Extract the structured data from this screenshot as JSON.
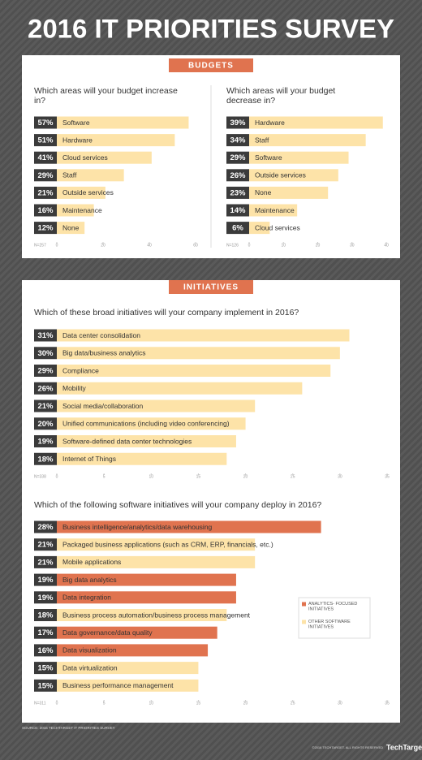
{
  "title": "2016 IT PRIORITIES SURVEY",
  "sections": [
    "BUDGETS",
    "INITIATIVES"
  ],
  "source": "SOURCE: 2016 TECHTARGET IT PRIORITIES SURVEY",
  "copyright": "©2016 TECHTARGET. ALL RIGHTS RESERVED",
  "logo": "TechTarget",
  "chart_data": [
    {
      "type": "bar",
      "orientation": "horizontal",
      "title": "Which areas will your budget increase in?",
      "categories": [
        "Software",
        "Hardware",
        "Cloud services",
        "Staff",
        "Outside services",
        "Maintenance",
        "None"
      ],
      "values": [
        57,
        51,
        41,
        29,
        21,
        16,
        12
      ],
      "value_labels": [
        "57%",
        "51%",
        "41%",
        "29%",
        "21%",
        "16%",
        "12%"
      ],
      "color": "#fde3a8",
      "xlim": [
        0,
        60
      ],
      "xticks": [
        0,
        20,
        40,
        60
      ],
      "note": "N=257"
    },
    {
      "type": "bar",
      "orientation": "horizontal",
      "title": "Which areas will your budget decrease in?",
      "categories": [
        "Hardware",
        "Staff",
        "Software",
        "Outside services",
        "None",
        "Maintenance",
        "Cloud services"
      ],
      "values": [
        39,
        34,
        29,
        26,
        23,
        14,
        6
      ],
      "value_labels": [
        "39%",
        "34%",
        "29%",
        "26%",
        "23%",
        "14%",
        "6%"
      ],
      "color": "#fde3a8",
      "xlim": [
        0,
        40
      ],
      "xticks": [
        0,
        10,
        20,
        30,
        40
      ],
      "note": "N=126"
    },
    {
      "type": "bar",
      "orientation": "horizontal",
      "title": "Which of these broad initiatives will your company implement in 2016?",
      "categories": [
        "Data center consolidation",
        "Big data/business analytics",
        "Compliance",
        "Mobility",
        "Social media/collaboration",
        "Unified communications (including video conferencing)",
        "Software-defined data center technologies",
        "Internet of Things"
      ],
      "values": [
        31,
        30,
        29,
        26,
        21,
        20,
        19,
        18
      ],
      "value_labels": [
        "31%",
        "30%",
        "29%",
        "26%",
        "21%",
        "20%",
        "19%",
        "18%"
      ],
      "color": "#fde3a8",
      "xlim": [
        0,
        35
      ],
      "xticks": [
        0,
        5,
        10,
        15,
        20,
        25,
        30,
        35
      ],
      "note": "N=338"
    },
    {
      "type": "bar",
      "orientation": "horizontal",
      "title": "Which of the following software initiatives will your company deploy in 2016?",
      "categories": [
        "Business intelligence/analytics/data warehousing",
        "Packaged business applications (such as CRM, ERP, financials, etc.)",
        "Mobile applications",
        "Big data analytics",
        "Data integration",
        "Business process automation/business process management",
        "Data governance/data quality",
        "Data visualization",
        "Data virtualization",
        "Business performance management"
      ],
      "series": [
        {
          "name": "ANALYTICS- FOCUSED INITIATIVES",
          "color": "#e0734f",
          "values": [
            28,
            null,
            null,
            19,
            19,
            null,
            17,
            16,
            null,
            null
          ],
          "value_labels": [
            "28%",
            null,
            null,
            "19%",
            "19%",
            null,
            "17%",
            "16%",
            null,
            null
          ]
        },
        {
          "name": "OTHER SOFTWARE INITIATIVES",
          "color": "#fde3a8",
          "values": [
            null,
            21,
            21,
            null,
            null,
            18,
            null,
            null,
            15,
            15
          ],
          "value_labels": [
            null,
            "21%",
            "21%",
            null,
            null,
            "18%",
            null,
            null,
            "15%",
            "15%"
          ]
        }
      ],
      "xlim": [
        0,
        35
      ],
      "xticks": [
        0,
        5,
        10,
        15,
        20,
        25,
        30,
        35
      ],
      "note": "N=311",
      "legend": "right"
    }
  ]
}
